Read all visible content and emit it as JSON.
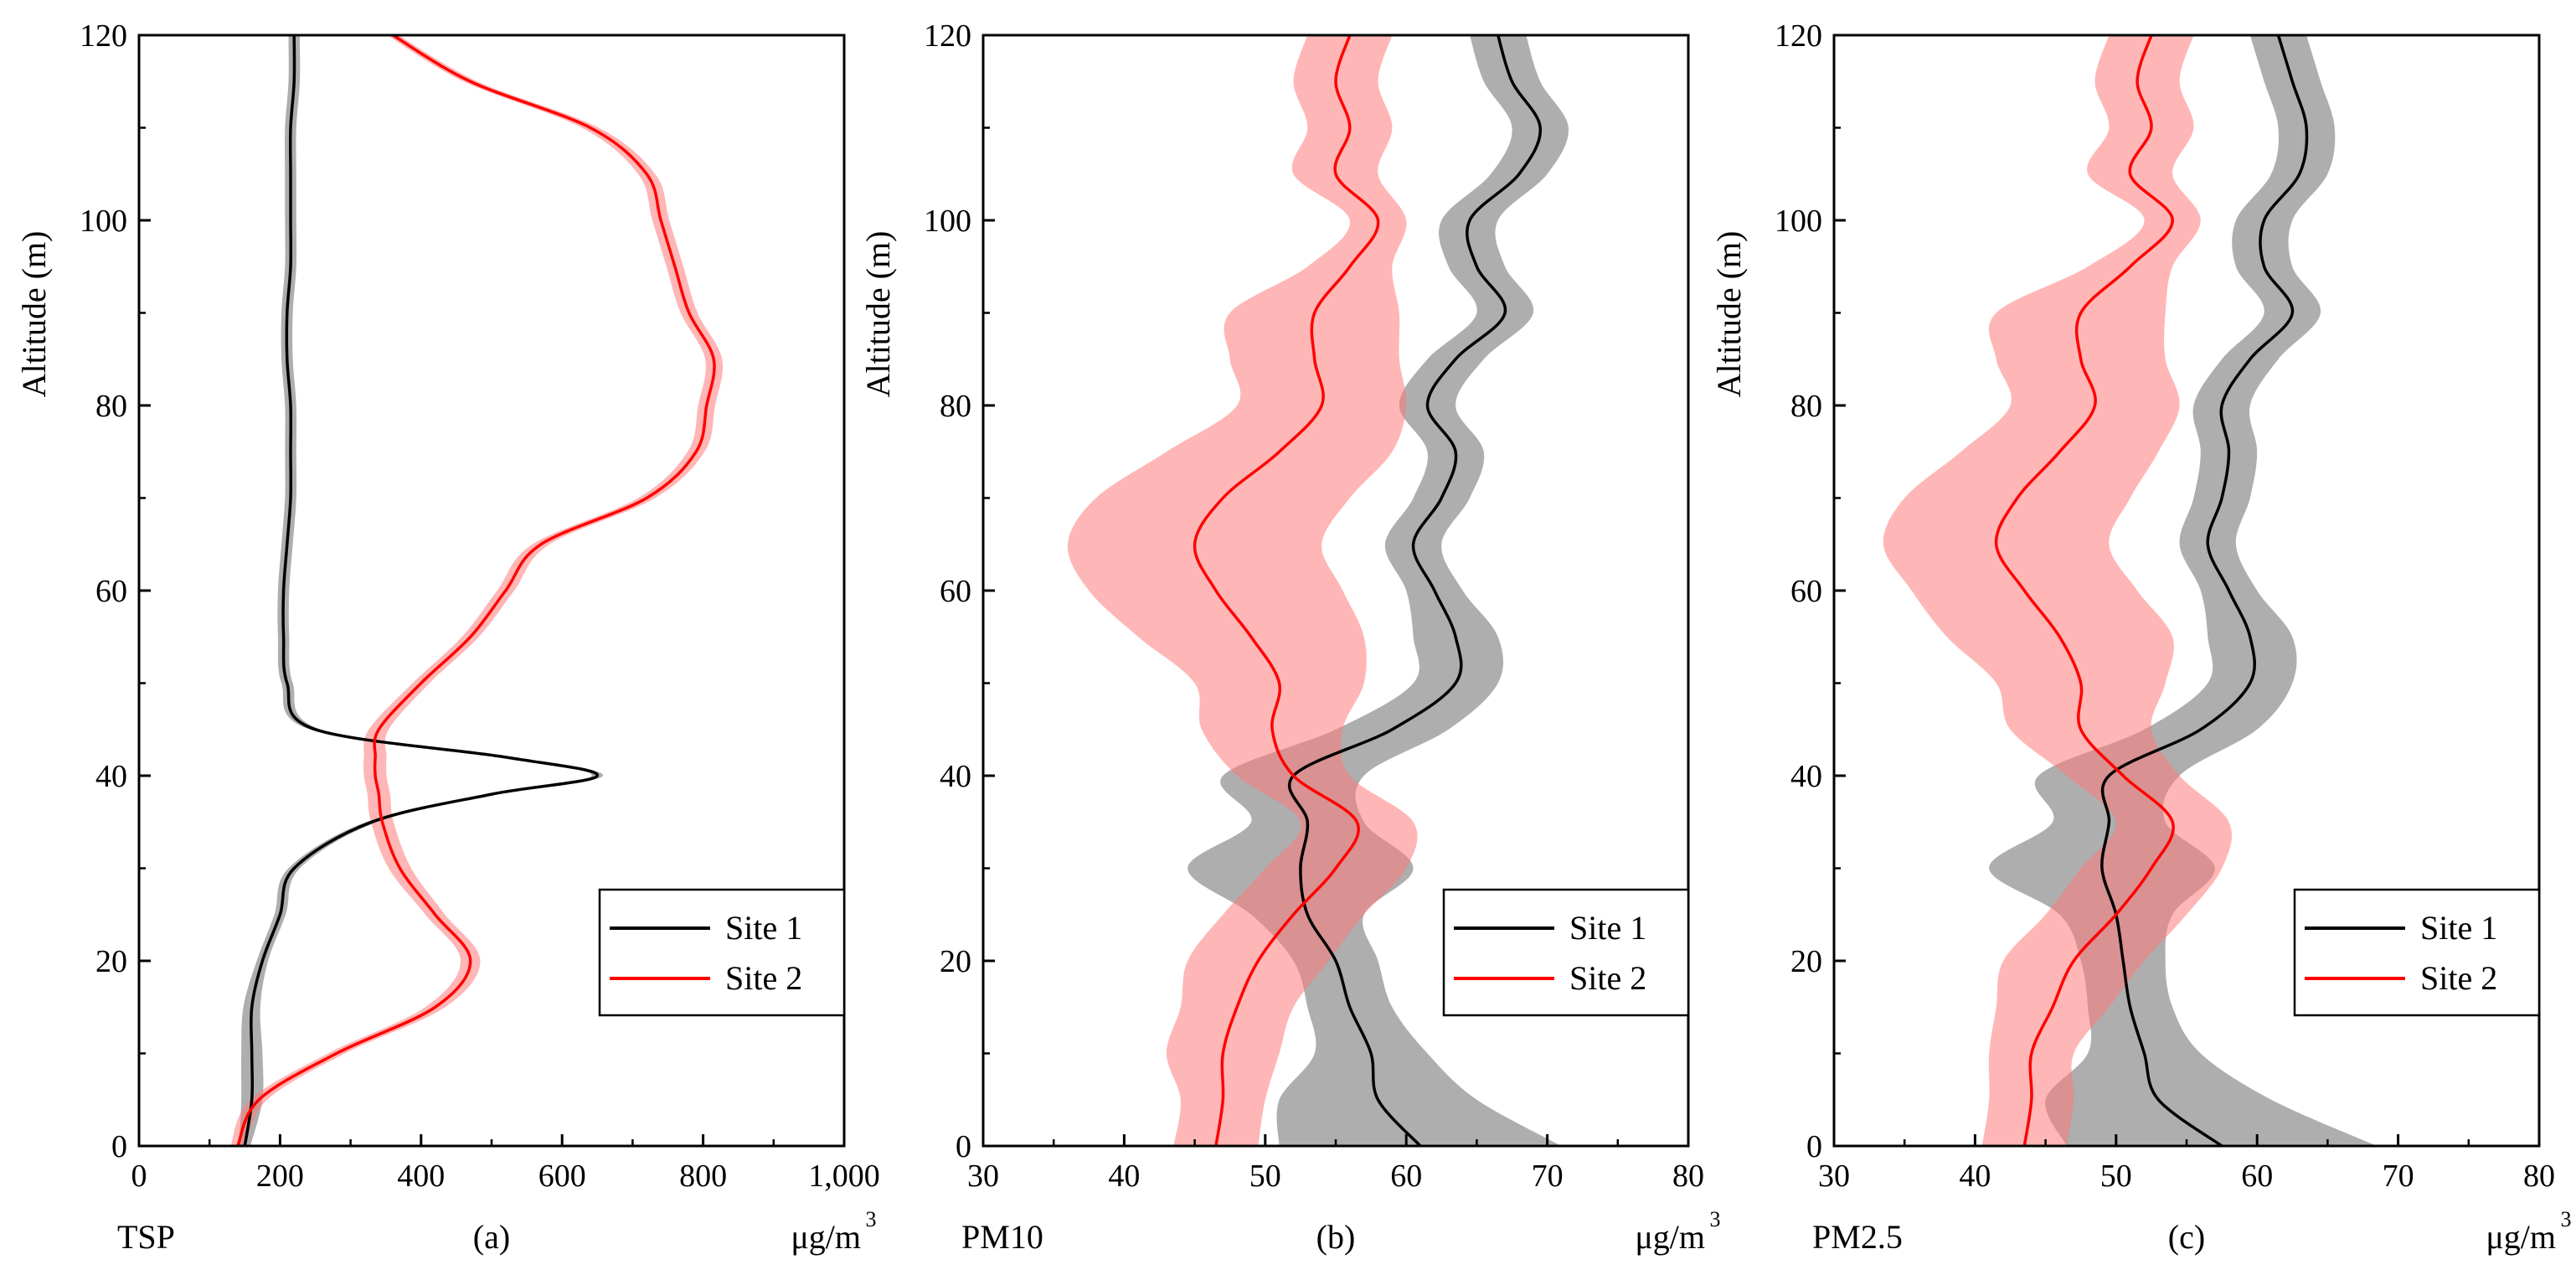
{
  "figure": {
    "colors": {
      "site1_line": "#000000",
      "site2_line": "#ff0000",
      "site1_band": "#8c8c8c",
      "site2_band": "#ff7a7a"
    }
  },
  "chart_data": [
    {
      "type": "line",
      "panel_label": "(a)",
      "pollutant": "TSP",
      "unit": "μg/m",
      "unit_exp": "3",
      "ylabel": "Altitude (m)",
      "xlim": [
        0,
        1000
      ],
      "ylim": [
        0,
        120
      ],
      "xticks": [
        0,
        200,
        400,
        600,
        800,
        1000
      ],
      "xtick_labels": [
        "0",
        "200",
        "400",
        "600",
        "800",
        "1,000"
      ],
      "yticks": [
        0,
        20,
        40,
        60,
        80,
        100,
        120
      ],
      "ytick_labels": [
        "0",
        "20",
        "40",
        "60",
        "80",
        "100",
        "120"
      ],
      "legend_position": "bottom-right",
      "altitude": [
        0,
        5,
        10,
        15,
        20,
        25,
        30,
        35,
        38,
        40,
        42,
        45,
        50,
        55,
        60,
        65,
        70,
        75,
        80,
        85,
        90,
        95,
        100,
        105,
        110,
        115,
        120
      ],
      "series": [
        {
          "name": "Site 1",
          "values": [
            150,
            160,
            160,
            160,
            175,
            200,
            220,
            330,
            500,
            650,
            520,
            250,
            210,
            205,
            205,
            210,
            215,
            215,
            215,
            210,
            210,
            215,
            215,
            215,
            215,
            220,
            220
          ],
          "band": [
            8,
            15,
            15,
            12,
            8,
            8,
            8,
            8,
            8,
            8,
            8,
            8,
            8,
            8,
            8,
            8,
            8,
            8,
            8,
            8,
            8,
            8,
            8,
            8,
            8,
            8,
            8
          ]
        },
        {
          "name": "Site 2",
          "values": [
            140,
            170,
            280,
            420,
            470,
            420,
            370,
            345,
            340,
            335,
            335,
            340,
            400,
            470,
            520,
            570,
            720,
            790,
            805,
            815,
            780,
            760,
            740,
            720,
            640,
            470,
            360
          ],
          "band": [
            10,
            12,
            12,
            14,
            14,
            14,
            16,
            16,
            16,
            16,
            16,
            14,
            12,
            12,
            12,
            12,
            12,
            12,
            12,
            12,
            12,
            12,
            12,
            12,
            12,
            10,
            8
          ]
        }
      ]
    },
    {
      "type": "line",
      "panel_label": "(b)",
      "pollutant": "PM10",
      "unit": "μg/m",
      "unit_exp": "3",
      "ylabel": "Altitude (m)",
      "xlim": [
        30,
        80
      ],
      "ylim": [
        0,
        120
      ],
      "xticks": [
        30,
        40,
        50,
        60,
        70,
        80
      ],
      "xtick_labels": [
        "30",
        "40",
        "50",
        "60",
        "70",
        "80"
      ],
      "yticks": [
        0,
        20,
        40,
        60,
        80,
        100,
        120
      ],
      "ytick_labels": [
        "0",
        "20",
        "40",
        "60",
        "80",
        "100",
        "120"
      ],
      "legend_position": "bottom-right",
      "altitude": [
        0,
        5,
        10,
        15,
        20,
        25,
        30,
        35,
        40,
        45,
        50,
        55,
        60,
        65,
        70,
        75,
        80,
        85,
        90,
        95,
        100,
        105,
        110,
        115,
        120
      ],
      "series": [
        {
          "name": "Site 1",
          "values": [
            61,
            58,
            57.5,
            56,
            55,
            53,
            52.5,
            53,
            52,
            59,
            63.5,
            63.5,
            62,
            60.5,
            62.5,
            63.5,
            61.5,
            63.5,
            67,
            65,
            64.5,
            68,
            69.5,
            67.5,
            66.5
          ],
          "band": [
            10,
            7,
            4,
            3,
            3,
            4,
            8,
            4,
            5,
            4,
            3,
            3,
            2,
            2,
            2,
            2,
            2,
            2,
            2,
            2,
            2,
            2,
            2,
            2,
            2
          ]
        },
        {
          "name": "Site 2",
          "values": [
            46.5,
            47,
            47,
            48,
            49.5,
            52,
            55,
            56.5,
            52,
            50.5,
            51,
            49,
            46.5,
            45,
            47,
            51,
            54,
            53.5,
            53.5,
            56,
            58,
            55,
            56,
            55,
            56
          ],
          "band": [
            3,
            3,
            4,
            4,
            5,
            5,
            5,
            4,
            4,
            5,
            6,
            8,
            9,
            9,
            9,
            8,
            6,
            6,
            6,
            3,
            2,
            3,
            3,
            3,
            3
          ]
        }
      ]
    },
    {
      "type": "line",
      "panel_label": "(c)",
      "pollutant": "PM2.5",
      "unit": "μg/m",
      "unit_exp": "3",
      "ylabel": "Altitude (m)",
      "xlim": [
        30,
        80
      ],
      "ylim": [
        0,
        120
      ],
      "xticks": [
        30,
        40,
        50,
        60,
        70,
        80
      ],
      "xtick_labels": [
        "30",
        "40",
        "50",
        "60",
        "70",
        "80"
      ],
      "yticks": [
        0,
        20,
        40,
        60,
        80,
        100,
        120
      ],
      "ytick_labels": [
        "0",
        "20",
        "40",
        "60",
        "80",
        "100",
        "120"
      ],
      "legend_position": "bottom-right",
      "altitude": [
        0,
        5,
        10,
        15,
        20,
        25,
        30,
        35,
        40,
        45,
        50,
        55,
        60,
        65,
        70,
        75,
        80,
        85,
        90,
        95,
        100,
        105,
        110,
        115,
        120
      ],
      "series": [
        {
          "name": "Site 1",
          "values": [
            57.5,
            53,
            52,
            51,
            50.5,
            50,
            49,
            49.5,
            49.5,
            56,
            59.5,
            59.5,
            58,
            56.5,
            57.5,
            58,
            57.5,
            59.5,
            62.5,
            60.5,
            60.5,
            63,
            63.5,
            62.5,
            61.5
          ],
          "band": [
            11,
            8,
            4,
            3,
            3,
            4,
            8,
            4,
            5,
            4,
            3,
            3,
            2,
            2,
            2,
            2,
            2,
            2,
            2,
            2,
            2,
            2,
            2,
            2,
            2
          ]
        },
        {
          "name": "Site 2",
          "values": [
            43.5,
            44,
            44,
            45.5,
            47,
            50,
            52.5,
            54,
            50.5,
            47.5,
            47.5,
            46,
            43.5,
            41.5,
            43,
            46,
            48.5,
            47.5,
            47.5,
            51,
            54,
            51,
            52.5,
            51.5,
            52.5
          ],
          "band": [
            3,
            3,
            3,
            4,
            5,
            5,
            5,
            4,
            4,
            5,
            6,
            8,
            8,
            8,
            8,
            7,
            6,
            6,
            6,
            3,
            2,
            3,
            3,
            3,
            3
          ]
        }
      ]
    }
  ]
}
